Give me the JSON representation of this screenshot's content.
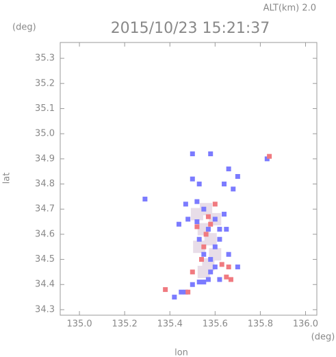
{
  "chart_data": {
    "type": "scatter",
    "title": "2015/10/23 15:21:37",
    "annotation": "ALT(km) 2.0",
    "y_unit": "(deg)",
    "x_unit": "(deg)",
    "xlabel": "lon",
    "ylabel": "lat",
    "xlim": [
      134.915,
      136.05
    ],
    "ylim": [
      34.278,
      35.363
    ],
    "xticks": [
      {
        "value": 135.0,
        "label": "135.0"
      },
      135.2,
      135.4,
      135.6,
      135.8,
      {
        "value": 136.0,
        "label": "136.0"
      }
    ],
    "yticks": [
      35.3,
      35.2,
      35.1,
      {
        "value": 35.0,
        "label": "35.0"
      },
      34.9,
      34.8,
      34.7,
      34.6,
      34.5,
      34.4,
      34.3
    ],
    "series": [
      {
        "color": "#e8dde8",
        "x": [
          135.52,
          135.56,
          135.6,
          135.55,
          135.58,
          135.53,
          135.6,
          135.57,
          135.55
        ],
        "y": [
          34.68,
          34.7,
          34.66,
          34.62,
          34.58,
          34.55,
          34.52,
          34.48,
          34.45
        ]
      },
      {
        "color": "#7b7bff",
        "x": [
          135.42,
          135.45,
          135.47,
          135.53,
          135.55,
          135.57,
          135.5,
          135.58,
          135.6,
          135.55,
          135.6,
          135.62,
          135.57,
          135.52,
          135.48,
          135.6,
          135.64,
          135.55,
          135.52,
          135.62,
          135.53,
          135.66,
          135.5,
          135.58,
          135.5,
          135.53,
          135.66,
          135.7,
          135.68,
          135.64,
          135.83,
          135.29,
          135.47,
          135.7,
          135.62,
          135.44,
          135.58,
          135.65
        ],
        "y": [
          34.35,
          34.37,
          34.37,
          34.41,
          34.41,
          34.42,
          34.4,
          34.45,
          34.47,
          34.52,
          34.55,
          34.58,
          34.62,
          34.65,
          34.66,
          34.66,
          34.68,
          34.7,
          34.73,
          34.62,
          34.58,
          34.52,
          34.92,
          34.92,
          34.82,
          34.8,
          34.86,
          34.83,
          34.78,
          34.8,
          34.9,
          34.74,
          34.72,
          34.47,
          34.42,
          34.64,
          34.5,
          34.62
        ]
      },
      {
        "color": "#f07a80",
        "x": [
          135.38,
          135.48,
          135.56,
          135.58,
          135.65,
          135.67,
          135.63,
          135.66,
          135.55,
          135.57,
          135.52,
          135.84,
          135.6,
          135.54,
          135.5
        ],
        "y": [
          34.38,
          34.37,
          34.6,
          34.64,
          34.43,
          34.42,
          34.48,
          34.47,
          34.55,
          34.67,
          34.63,
          34.91,
          34.72,
          34.5,
          34.45
        ]
      }
    ]
  }
}
